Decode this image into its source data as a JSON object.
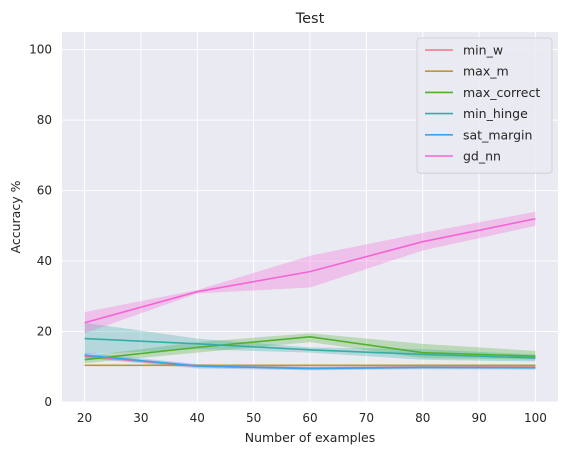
{
  "chart_data": {
    "type": "line",
    "title": "Test",
    "xlabel": "Number of examples",
    "ylabel": "Accuracy %",
    "xlim": [
      16,
      104
    ],
    "ylim": [
      0,
      105
    ],
    "xticks": [
      20,
      30,
      40,
      50,
      60,
      70,
      80,
      90,
      100
    ],
    "yticks": [
      0,
      20,
      40,
      60,
      80,
      100
    ],
    "grid": true,
    "legend_position": "top-right",
    "x": [
      20,
      40,
      60,
      80,
      100
    ],
    "series": [
      {
        "name": "min_w",
        "color": "#f77189",
        "values": [
          13.0,
          10.2,
          9.6,
          9.9,
          9.9
        ],
        "ci_low": [
          12.5,
          9.8,
          9.2,
          9.5,
          9.5
        ],
        "ci_high": [
          13.5,
          10.6,
          10.0,
          10.3,
          10.3
        ]
      },
      {
        "name": "max_m",
        "color": "#bb9832",
        "values": [
          10.4,
          10.4,
          10.4,
          10.4,
          10.4
        ],
        "ci_low": [
          10.2,
          10.2,
          10.2,
          10.2,
          10.2
        ],
        "ci_high": [
          10.6,
          10.6,
          10.6,
          10.6,
          10.6
        ]
      },
      {
        "name": "max_correct",
        "color": "#50b131",
        "values": [
          12.0,
          15.5,
          18.5,
          14.0,
          13.0
        ],
        "ci_low": [
          11.0,
          14.0,
          17.0,
          12.5,
          12.0
        ],
        "ci_high": [
          13.0,
          17.0,
          19.5,
          16.5,
          14.5
        ]
      },
      {
        "name": "min_hinge",
        "color": "#36ada4",
        "values": [
          18.0,
          16.5,
          14.8,
          13.5,
          12.5
        ],
        "ci_low": [
          13.5,
          15.0,
          14.0,
          12.0,
          11.5
        ],
        "ci_high": [
          22.5,
          18.0,
          15.5,
          15.0,
          13.5
        ]
      },
      {
        "name": "sat_margin",
        "color": "#3ba3ec",
        "values": [
          13.3,
          10.2,
          9.5,
          9.8,
          9.7
        ],
        "ci_low": [
          12.5,
          9.5,
          9.0,
          9.3,
          9.2
        ],
        "ci_high": [
          14.0,
          10.8,
          10.0,
          10.3,
          10.2
        ]
      },
      {
        "name": "gd_nn",
        "color": "#f564d4",
        "values": [
          22.5,
          31.3,
          37.0,
          45.5,
          52.0
        ],
        "ci_low": [
          19.5,
          30.8,
          32.5,
          43.0,
          50.0
        ],
        "ci_high": [
          25.5,
          31.8,
          41.5,
          48.0,
          54.0
        ]
      }
    ]
  }
}
